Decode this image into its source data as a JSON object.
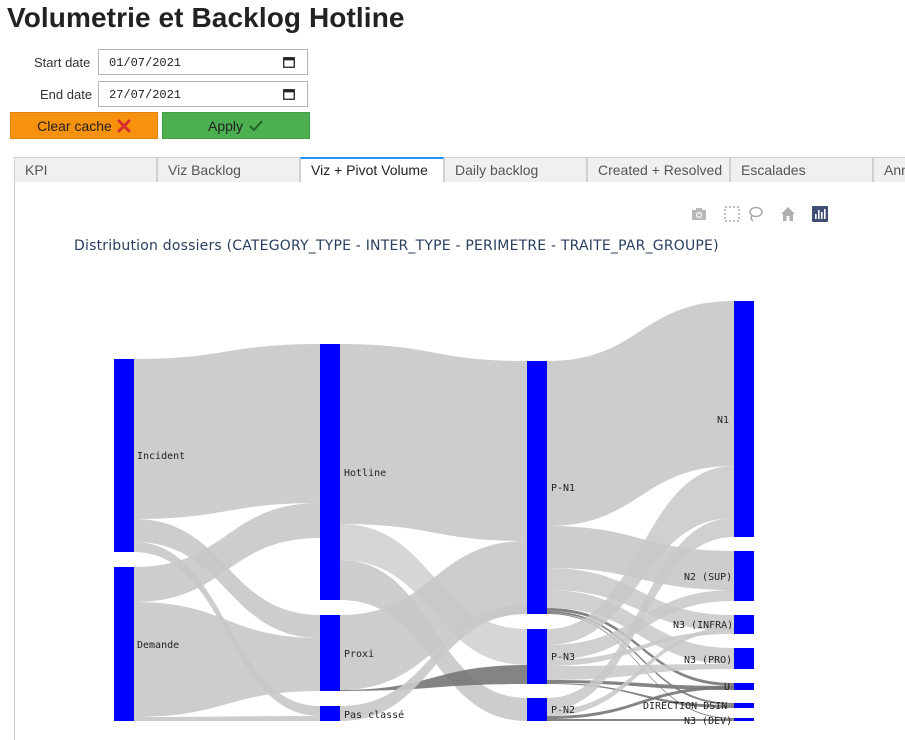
{
  "page": {
    "title": "Volumetrie et Backlog Hotline"
  },
  "filters": {
    "start_label": "Start date",
    "start_value": "01/07/2021",
    "end_label": "End date",
    "end_value": "27/07/2021"
  },
  "buttons": {
    "clear_label": "Clear cache",
    "apply_label": "Apply"
  },
  "tabs": [
    {
      "label": "KPI",
      "active": false
    },
    {
      "label": "Viz Backlog",
      "active": false
    },
    {
      "label": "Viz + Pivot Volume",
      "active": true
    },
    {
      "label": "Daily backlog",
      "active": false
    },
    {
      "label": "Created + Resolved",
      "active": false
    },
    {
      "label": "Escalades",
      "active": false
    },
    {
      "label": "Ann",
      "active": false
    }
  ],
  "modebar": [
    "camera-icon",
    "box-select-icon",
    "lasso-select-icon",
    "home-icon",
    "plotly-logo-icon"
  ],
  "chart": {
    "title": "Distribution dossiers (CATEGORY_TYPE - INTER_TYPE - PERIMETRE - TRAITE_PAR_GROUPE)",
    "node_color": "#0000ff",
    "link_color": "#c8c8c8",
    "nodes": [
      {
        "label": "Incident"
      },
      {
        "label": "Demande"
      },
      {
        "label": "Hotline"
      },
      {
        "label": "Proxi"
      },
      {
        "label": "Pas classé"
      },
      {
        "label": "P-N1"
      },
      {
        "label": "P-N3"
      },
      {
        "label": "P-N2"
      },
      {
        "label": "N1"
      },
      {
        "label": "N2 (SUP)"
      },
      {
        "label": "N3 (INFRA)"
      },
      {
        "label": "N3 (PRO)"
      },
      {
        "label": "U"
      },
      {
        "label": "DIRECTION DSIN"
      },
      {
        "label": "N3 (DEV)"
      }
    ]
  }
}
